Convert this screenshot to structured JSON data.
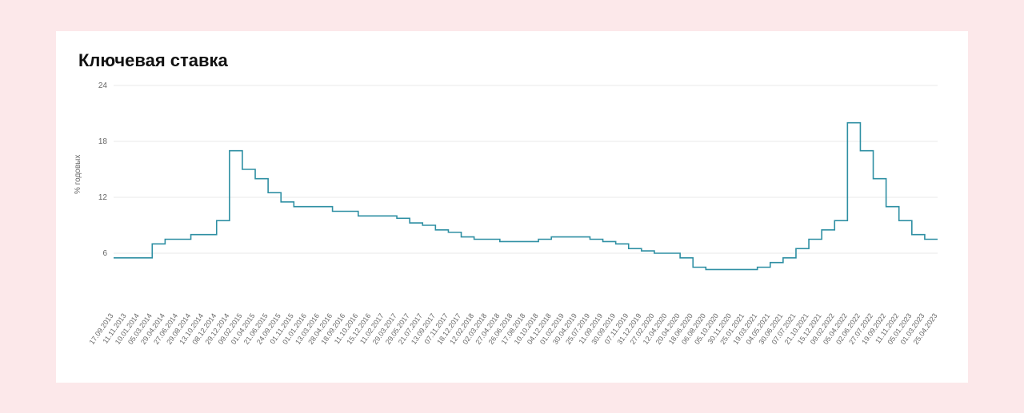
{
  "chart": {
    "type": "step-line",
    "title": "Ключевая ставка",
    "ylabel": "% годовых",
    "background_color": "#ffffff",
    "page_background": "#fce8ea",
    "grid_color": "#e9e9e9",
    "line_color": "#2e8fa3",
    "line_width": 1.6,
    "title_fontsize": 22,
    "label_fontsize": 10,
    "tick_fontsize": 10,
    "ylim": [
      0,
      24
    ],
    "yticks": [
      6,
      12,
      18,
      24
    ],
    "x_dates": [
      "17.09.2013",
      "11.11.2013",
      "10.01.2014",
      "05.03.2014",
      "29.04.2014",
      "27.06.2014",
      "29.08.2014",
      "13.10.2014",
      "08.12.2014",
      "29.12.2014",
      "09.02.2015",
      "01.04.2015",
      "21.06.2015",
      "24.09.2015",
      "01.11.2015",
      "01.01.2016",
      "13.03.2016",
      "28.04.2016",
      "18.09.2016",
      "11.10.2016",
      "15.12.2016",
      "11.02.2017",
      "29.03.2017",
      "29.05.2017",
      "21.07.2017",
      "13.09.2017",
      "07.11.2017",
      "18.12.2017",
      "12.02.2018",
      "02.03.2018",
      "27.04.2018",
      "26.06.2018",
      "17.08.2018",
      "10.10.2018",
      "04.12.2018",
      "01.02.2019",
      "30.04.2019",
      "25.07.2019",
      "11.09.2019",
      "30.09.2019",
      "07.11.2019",
      "31.12.2019",
      "27.02.2020",
      "12.04.2020",
      "20.04.2020",
      "18.06.2020",
      "06.08.2020",
      "05.10.2020",
      "30.11.2020",
      "25.01.2021",
      "19.03.2021",
      "04.05.2021",
      "30.06.2021",
      "07.07.2021",
      "21.10.2021",
      "15.12.2021",
      "09.02.2022",
      "05.04.2022",
      "02.06.2022",
      "27.07.2022",
      "19.09.2022",
      "11.11.2022",
      "05.01.2023",
      "01.03.2023",
      "25.04.2023"
    ],
    "y_values": [
      5.5,
      5.5,
      5.5,
      7.0,
      7.5,
      7.5,
      8.0,
      8.0,
      9.5,
      17.0,
      15.0,
      14.0,
      12.5,
      11.5,
      11.0,
      11.0,
      11.0,
      10.5,
      10.5,
      10.0,
      10.0,
      10.0,
      9.75,
      9.25,
      9.0,
      8.5,
      8.25,
      7.75,
      7.5,
      7.5,
      7.25,
      7.25,
      7.25,
      7.5,
      7.75,
      7.75,
      7.75,
      7.5,
      7.25,
      7.0,
      6.5,
      6.25,
      6.0,
      6.0,
      5.5,
      4.5,
      4.25,
      4.25,
      4.25,
      4.25,
      4.5,
      5.0,
      5.5,
      6.5,
      7.5,
      8.5,
      9.5,
      20.0,
      17.0,
      14.0,
      11.0,
      9.5,
      8.0,
      7.5,
      7.5
    ]
  }
}
